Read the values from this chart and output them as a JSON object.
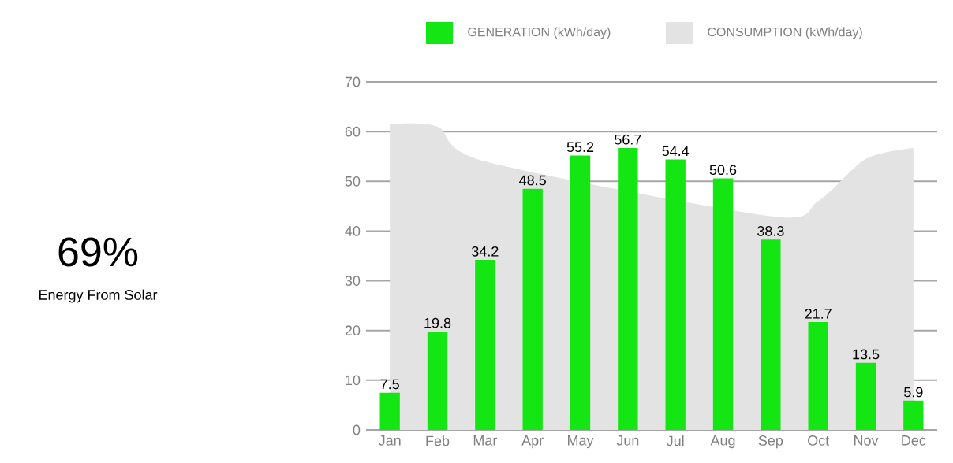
{
  "chart_data": {
    "type": "bar",
    "categories": [
      "Jan",
      "Feb",
      "Mar",
      "Apr",
      "May",
      "Jun",
      "Jul",
      "Aug",
      "Sep",
      "Oct",
      "Nov",
      "Dec"
    ],
    "series": [
      {
        "name": "GENERATION (kWh/day)",
        "color": "#14e614",
        "values": [
          7.5,
          19.8,
          34.2,
          48.5,
          55.2,
          56.7,
          54.4,
          50.6,
          38.3,
          21.7,
          13.5,
          5.9
        ],
        "value_labels": [
          "7.5",
          "19.8",
          "34.2",
          "48.5",
          "55.2",
          "56.7",
          "54.4",
          "50.6",
          "38.3",
          "21.7",
          "13.5",
          "5.9"
        ]
      },
      {
        "name": "CONSUMPTION (kWh/day)",
        "type": "area",
        "color": "#e3e3e3",
        "values": [
          61.5,
          61,
          54,
          null,
          null,
          null,
          null,
          null,
          43,
          46,
          54.5,
          56.7
        ]
      }
    ],
    "ylim": [
      0,
      70
    ],
    "yticks": [
      0,
      10,
      20,
      30,
      40,
      50,
      60,
      70
    ],
    "grid": "y",
    "legend": "top",
    "annotations": [
      "69%",
      "Energy From Solar"
    ]
  }
}
